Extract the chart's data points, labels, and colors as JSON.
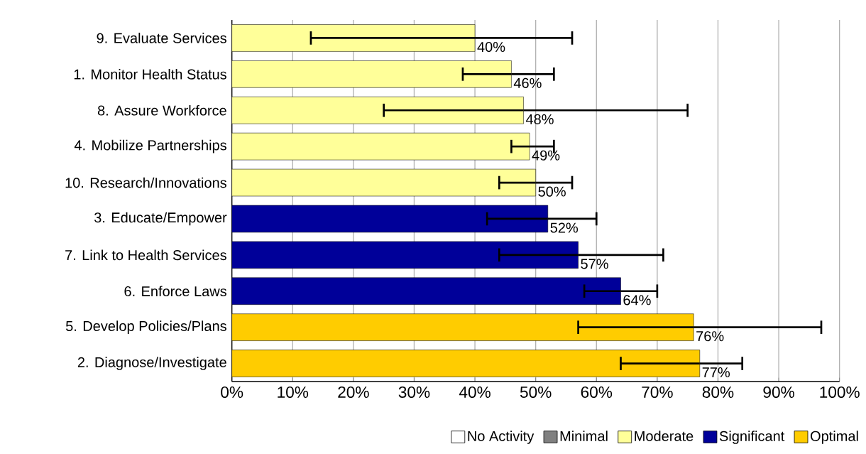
{
  "chart_data": {
    "type": "bar",
    "orientation": "horizontal",
    "categories": [
      "9.  Evaluate Services",
      "1.  Monitor Health Status",
      "8.  Assure Workforce",
      "4.  Mobilize Partnerships",
      "10.  Research/Innovations",
      "3.  Educate/Empower",
      "7.  Link to Health Services",
      "6.  Enforce Laws",
      "5.  Develop Policies/Plans",
      "2.  Diagnose/Investigate"
    ],
    "series": [
      {
        "name": "No Activity",
        "color": "#ffffff",
        "values": [
          null,
          null,
          null,
          null,
          null,
          null,
          null,
          null,
          null,
          null
        ]
      },
      {
        "name": "Minimal",
        "color": "#808080",
        "values": [
          null,
          null,
          null,
          null,
          null,
          null,
          null,
          null,
          null,
          null
        ]
      },
      {
        "name": "Moderate",
        "color": "#ffff99",
        "values": [
          40,
          46,
          48,
          49,
          50,
          null,
          null,
          null,
          null,
          null
        ],
        "errors": [
          [
            13,
            56
          ],
          [
            38,
            53
          ],
          [
            25,
            75
          ],
          [
            46,
            53
          ],
          [
            44,
            56
          ],
          null,
          null,
          null,
          null,
          null
        ],
        "value_labels": [
          "40%",
          "46%",
          "48%",
          "49%",
          "50%",
          null,
          null,
          null,
          null,
          null
        ]
      },
      {
        "name": "Significant",
        "color": "#000099",
        "values": [
          null,
          null,
          null,
          null,
          null,
          52,
          57,
          64,
          null,
          null
        ],
        "errors": [
          null,
          null,
          null,
          null,
          null,
          [
            42,
            60
          ],
          [
            44,
            71
          ],
          [
            58,
            70
          ],
          null,
          null
        ],
        "value_labels": [
          null,
          null,
          null,
          null,
          null,
          "52%",
          "57%",
          "64%",
          null,
          null
        ]
      },
      {
        "name": "Optimal",
        "color": "#ffcc00",
        "values": [
          null,
          null,
          null,
          null,
          null,
          null,
          null,
          null,
          76,
          77
        ],
        "errors": [
          null,
          null,
          null,
          null,
          null,
          null,
          null,
          null,
          [
            57,
            97
          ],
          [
            64,
            84
          ]
        ],
        "value_labels": [
          null,
          null,
          null,
          null,
          null,
          null,
          null,
          null,
          "76%",
          "77%"
        ]
      }
    ],
    "xlim": [
      0,
      100
    ],
    "xticks": [
      {
        "value": 0,
        "label": "0%"
      },
      {
        "value": 10,
        "label": "10%"
      },
      {
        "value": 20,
        "label": "20%"
      },
      {
        "value": 30,
        "label": "30%"
      },
      {
        "value": 40,
        "label": "40%"
      },
      {
        "value": 50,
        "label": "50%"
      },
      {
        "value": 60,
        "label": "60%"
      },
      {
        "value": 70,
        "label": "70%"
      },
      {
        "value": 80,
        "label": "80%"
      },
      {
        "value": 90,
        "label": "90%"
      },
      {
        "value": 100,
        "label": "100%"
      }
    ],
    "grid": "x",
    "legend": "bottom right"
  }
}
